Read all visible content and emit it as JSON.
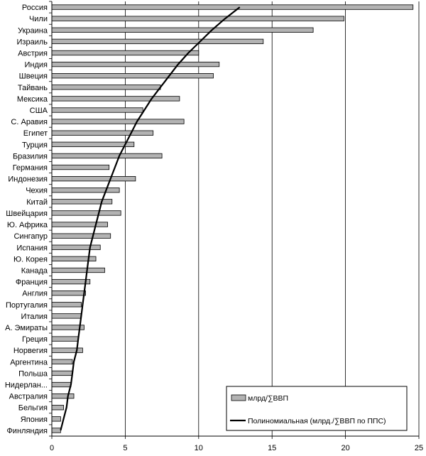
{
  "chart_data": {
    "type": "bar",
    "orientation": "horizontal",
    "categories": [
      "Россия",
      "Чили",
      "Украина",
      "Израиль",
      "Австрия",
      "Индия",
      "Швеция",
      "Тайвань",
      "Мексика",
      "США",
      "С. Аравия",
      "Египет",
      "Турция",
      "Бразилия",
      "Германия",
      "Индонезия",
      "Чехия",
      "Китай",
      "Швейцария",
      "Ю. Африка",
      "Сингапур",
      "Испания",
      "Ю. Корея",
      "Канада",
      "Франция",
      "Англия",
      "Португалия",
      "Италия",
      "А. Эмираты",
      "Греция",
      "Норвегия",
      "Аргентина",
      "Польша",
      "Нидерлан...",
      "Австралия",
      "Бельгия",
      "Япония",
      "Финляндия"
    ],
    "series": [
      {
        "name": "млрд/∑ВВП",
        "values": [
          24.6,
          19.9,
          17.8,
          14.4,
          10.0,
          11.4,
          11.0,
          7.4,
          8.7,
          6.2,
          9.0,
          6.9,
          5.6,
          7.5,
          3.9,
          5.7,
          4.6,
          4.1,
          4.7,
          3.8,
          4.0,
          3.3,
          3.0,
          3.6,
          2.6,
          2.3,
          2.0,
          2.0,
          2.2,
          1.8,
          2.1,
          1.4,
          1.4,
          1.3,
          1.5,
          0.8,
          0.6,
          0.6
        ],
        "color": "#b3b3b3"
      },
      {
        "name": "Полиномиальная (млрд./∑ВВП по ППС)",
        "type": "line",
        "values": [
          12.8,
          11.8,
          10.9,
          10.1,
          9.3,
          8.6,
          8.0,
          7.4,
          6.8,
          6.3,
          5.8,
          5.4,
          5.0,
          4.6,
          4.3,
          4.0,
          3.7,
          3.4,
          3.2,
          3.0,
          2.8,
          2.6,
          2.5,
          2.4,
          2.3,
          2.2,
          2.1,
          2.0,
          1.9,
          1.8,
          1.7,
          1.5,
          1.4,
          1.3,
          1.1,
          1.0,
          0.8,
          0.6
        ],
        "color": "#000000"
      }
    ],
    "xlim": [
      0,
      25
    ],
    "xticks": [
      0,
      5,
      10,
      15,
      20,
      25
    ],
    "grid": "vertical",
    "legend_position": "bottom-right"
  }
}
